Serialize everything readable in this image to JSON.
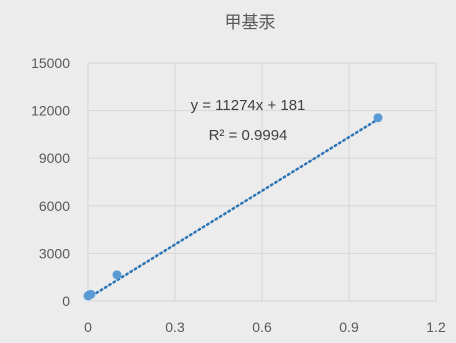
{
  "chart_data": {
    "type": "scatter",
    "title": "甲基汞",
    "xlabel": "",
    "ylabel": "",
    "xlim": [
      0,
      1.2
    ],
    "ylim": [
      0,
      15000
    ],
    "x_ticks": [
      0,
      0.3,
      0.6,
      0.9,
      1.2
    ],
    "x_tick_labels": [
      "0",
      "0.3",
      "0.6",
      "0.9",
      "1.2"
    ],
    "y_ticks": [
      0,
      3000,
      6000,
      9000,
      12000,
      15000
    ],
    "y_tick_labels": [
      "0",
      "3000",
      "6000",
      "9000",
      "12000",
      "15000"
    ],
    "grid": "vertical and horizontal",
    "marker_color": "#5b9bd5",
    "trendline_color": "#2e75b6",
    "series": [
      {
        "points": [
          {
            "x": 0.0,
            "y": 320
          },
          {
            "x": 0.005,
            "y": 390
          },
          {
            "x": 0.01,
            "y": 420
          },
          {
            "x": 0.1,
            "y": 1650
          },
          {
            "x": 1.0,
            "y": 11550
          }
        ]
      }
    ],
    "trendline": {
      "type": "linear",
      "slope": 11274,
      "intercept": 181,
      "x_range": [
        0,
        1.0
      ],
      "equation": "y = 11274x + 181",
      "r_squared": "R² = 0.9994"
    }
  }
}
